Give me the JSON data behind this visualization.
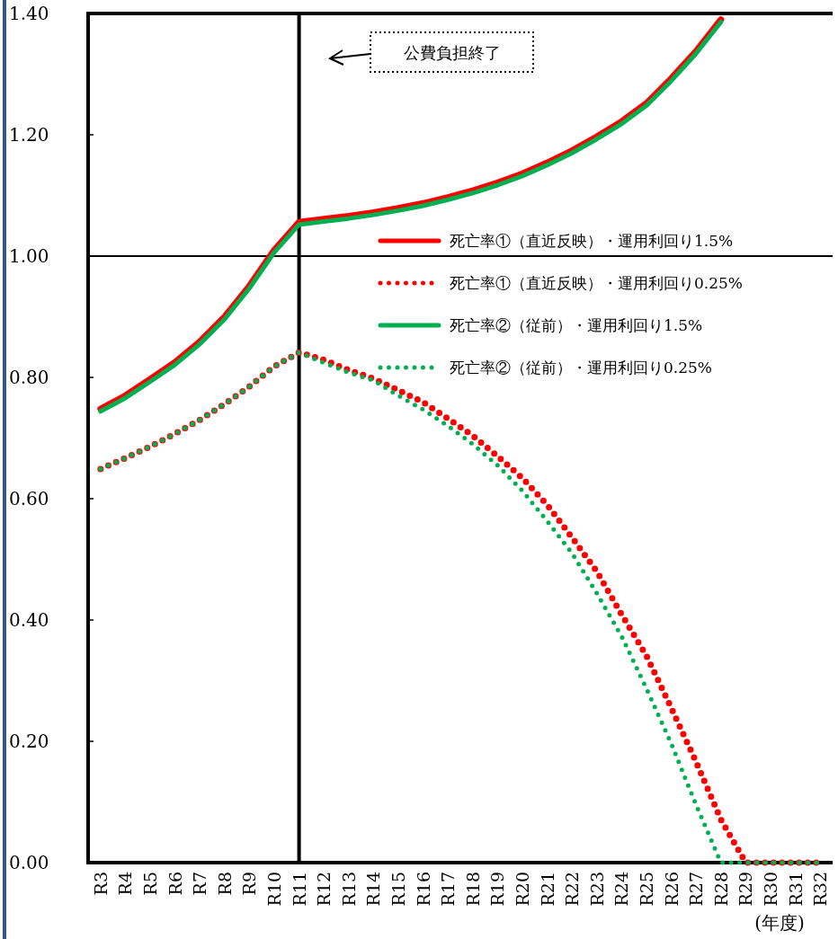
{
  "chart_data": {
    "type": "line",
    "categories": [
      "R3",
      "R4",
      "R5",
      "R6",
      "R7",
      "R8",
      "R9",
      "R10",
      "R11",
      "R12",
      "R13",
      "R14",
      "R15",
      "R16",
      "R17",
      "R18",
      "R19",
      "R20",
      "R21",
      "R22",
      "R23",
      "R24",
      "R25",
      "R26",
      "R27",
      "R28",
      "R29",
      "R30",
      "R31",
      "R32"
    ],
    "xlabel": "(年度)",
    "ylim": [
      0,
      1.4
    ],
    "yticks": [
      {
        "value": 0,
        "label": "0.00"
      },
      {
        "value": 0.2,
        "label": "0.20"
      },
      {
        "value": 0.4,
        "label": "0.40"
      },
      {
        "value": 0.6,
        "label": "0.60"
      },
      {
        "value": 0.8,
        "label": "0.80"
      },
      {
        "value": 1.0,
        "label": "1.00"
      },
      {
        "value": 1.2,
        "label": "1.20"
      },
      {
        "value": 1.4,
        "label": "1.40"
      }
    ],
    "grid": false,
    "legend": "top right",
    "ref_lines": [
      {
        "axis": "x",
        "value": "R11"
      },
      {
        "axis": "y",
        "value": 1.0
      }
    ],
    "annotations": [
      "公費負担終了"
    ],
    "series": [
      {
        "name": "死亡率①（直近反映）・運用利回り1.5%",
        "color": "#ff0000",
        "line_style": "solid",
        "values": [
          0.748,
          0.77,
          0.797,
          0.825,
          0.859,
          0.9,
          0.951,
          1.01,
          1.056,
          1.061,
          1.066,
          1.072,
          1.079,
          1.087,
          1.097,
          1.108,
          1.121,
          1.136,
          1.154,
          1.174,
          1.197,
          1.222,
          1.252,
          1.293,
          1.338,
          1.39,
          null,
          null,
          null,
          null
        ]
      },
      {
        "name": "死亡率①（直近反映）・運用利回り0.25%",
        "color": "#ff0000",
        "line_style": "dotted",
        "values": [
          0.649,
          0.667,
          0.686,
          0.707,
          0.73,
          0.756,
          0.785,
          0.818,
          0.841,
          0.829,
          0.812,
          0.798,
          0.779,
          0.759,
          0.732,
          0.704,
          0.67,
          0.634,
          0.59,
          0.536,
          0.48,
          0.409,
          0.341,
          0.255,
          0.166,
          0.071,
          0,
          0,
          0,
          0
        ]
      },
      {
        "name": "死亡率②（従前）・運用利回り1.5%",
        "color": "#00b050",
        "line_style": "solid",
        "values": [
          0.744,
          0.766,
          0.793,
          0.821,
          0.855,
          0.896,
          0.947,
          1.006,
          1.052,
          1.057,
          1.062,
          1.068,
          1.075,
          1.083,
          1.093,
          1.104,
          1.117,
          1.132,
          1.15,
          1.17,
          1.193,
          1.218,
          1.248,
          1.289,
          1.334,
          1.386,
          null,
          null,
          null,
          null
        ]
      },
      {
        "name": "死亡率②（従前）・運用利回り0.25%",
        "color": "#00b050",
        "line_style": "dotted",
        "values": [
          0.649,
          0.667,
          0.686,
          0.707,
          0.73,
          0.756,
          0.785,
          0.818,
          0.841,
          0.824,
          0.808,
          0.795,
          0.77,
          0.747,
          0.72,
          0.69,
          0.655,
          0.613,
          0.563,
          0.51,
          0.444,
          0.373,
          0.287,
          0.196,
          0.095,
          0,
          0,
          0,
          0,
          0
        ]
      }
    ]
  }
}
